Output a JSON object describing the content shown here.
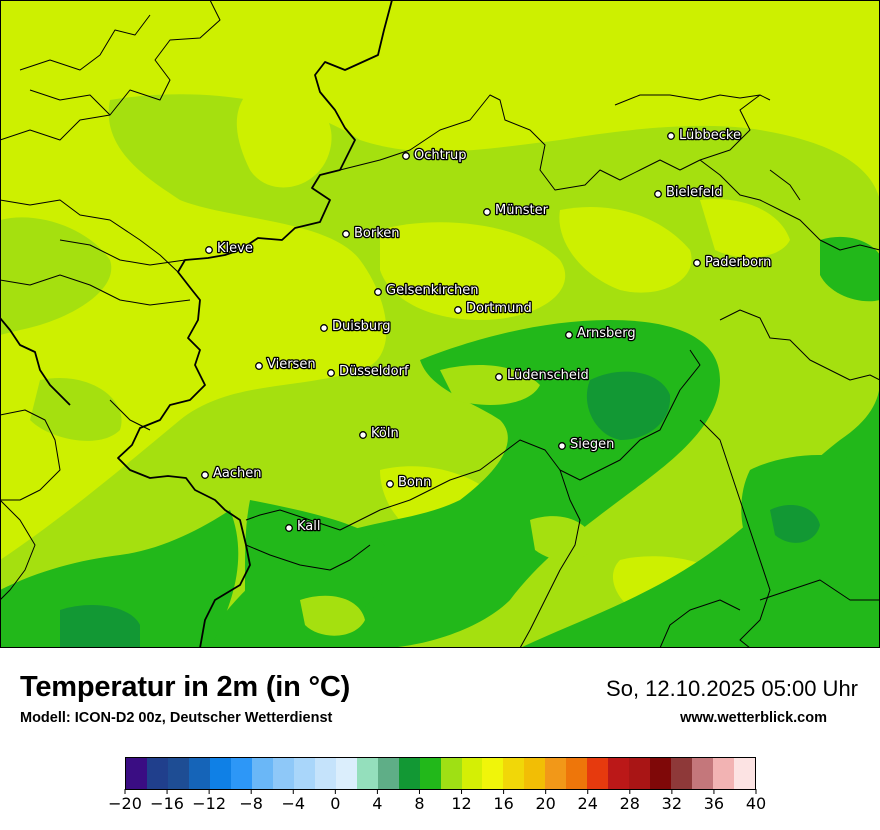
{
  "title": "Temperatur in 2m (in °C)",
  "model": "Modell: ICON-D2 00z, Deutscher Wetterdienst",
  "datetime": "So, 12.10.2025 05:00 Uhr",
  "source": "www.wetterblick.com",
  "legend": {
    "unit": "°C",
    "min": -20,
    "max": 40,
    "step": 2,
    "ticks": [
      "−20",
      "−16",
      "−12",
      "−8",
      "−4",
      "0",
      "4",
      "8",
      "12",
      "16",
      "20",
      "24",
      "28",
      "32",
      "36",
      "40"
    ],
    "colors": [
      "#3a0d83",
      "#203f8c",
      "#1e4d94",
      "#1564b8",
      "#0f80e6",
      "#2d97f7",
      "#6ab7f7",
      "#8ec8f8",
      "#a9d6fa",
      "#c5e3fb",
      "#dbeefc",
      "#94dfbc",
      "#5fae87",
      "#129834",
      "#22b81a",
      "#9fe014",
      "#d4ef05",
      "#f0f50a",
      "#f1d708",
      "#f2be05",
      "#f29818",
      "#ee760a",
      "#e63a0e",
      "#bb1818",
      "#a91515",
      "#7f0808",
      "#8e3939",
      "#c4777b",
      "#f2b3b3",
      "#fce3e3"
    ]
  },
  "cities": [
    {
      "name": "Lübbecke"
    },
    {
      "name": "Ochtrup"
    },
    {
      "name": "Bielefeld"
    },
    {
      "name": "Münster"
    },
    {
      "name": "Borken"
    },
    {
      "name": "Kleve"
    },
    {
      "name": "Paderborn"
    },
    {
      "name": "Gelsenkirchen"
    },
    {
      "name": "Dortmund"
    },
    {
      "name": "Duisburg"
    },
    {
      "name": "Arnsberg"
    },
    {
      "name": "Viersen"
    },
    {
      "name": "Düsseldorf"
    },
    {
      "name": "Lüdenscheid"
    },
    {
      "name": "Köln"
    },
    {
      "name": "Siegen"
    },
    {
      "name": "Aachen"
    },
    {
      "name": "Bonn"
    },
    {
      "name": "Kall"
    }
  ],
  "map_colors": {
    "warm": "#cdf000",
    "mild": "#a5e00f",
    "cool": "#22b81a",
    "cold": "#129834"
  }
}
